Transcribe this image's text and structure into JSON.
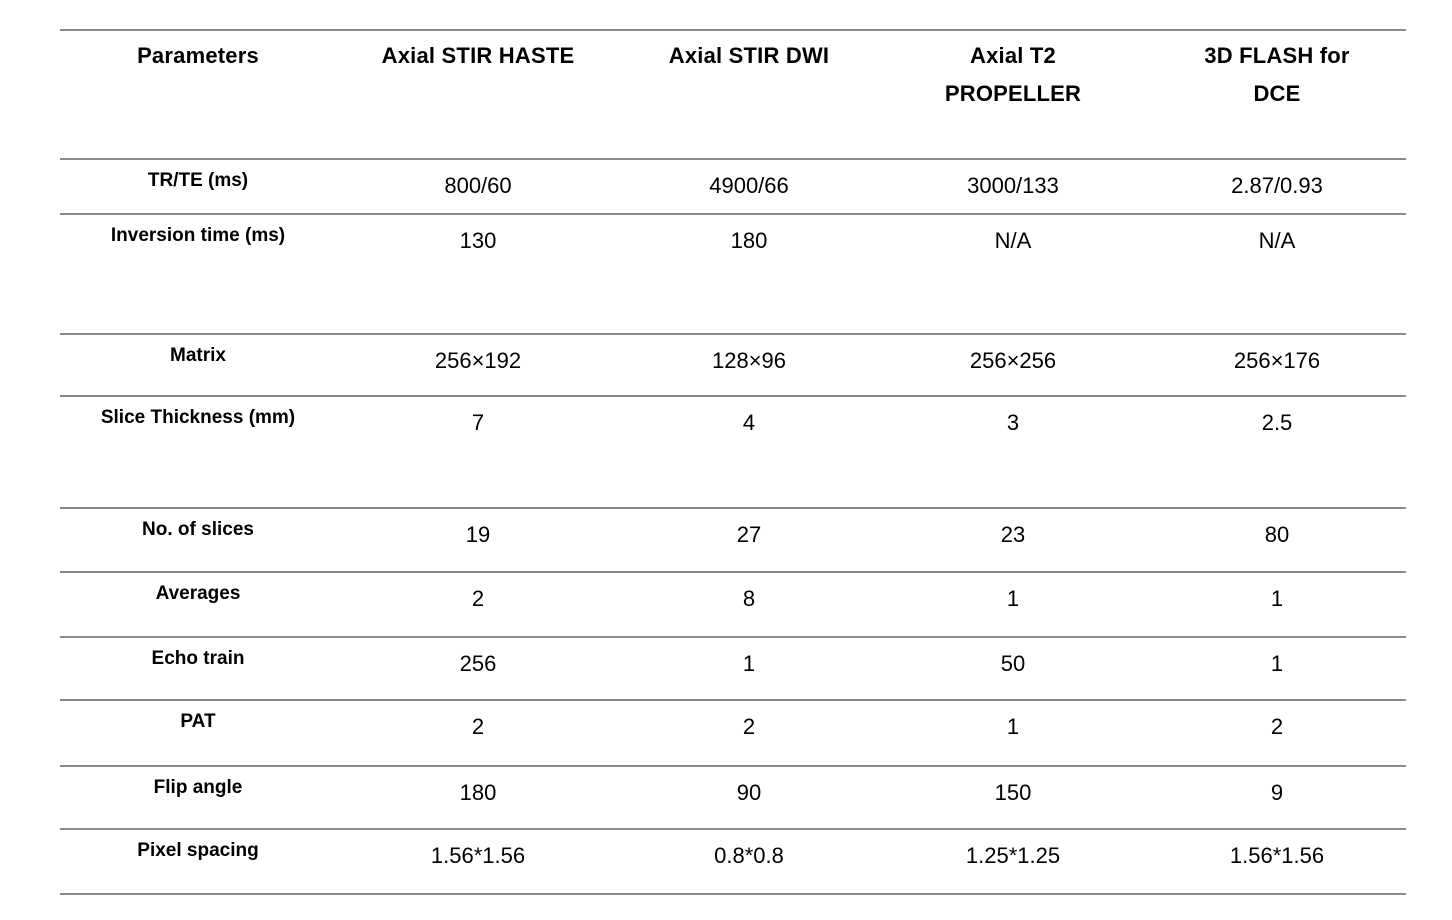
{
  "table": {
    "columns": [
      "Parameters",
      "Axial STIR HASTE",
      "Axial STIR DWI",
      "Axial T2\nPROPELLER",
      "3D FLASH for\nDCE"
    ],
    "rows": [
      {
        "label": "TR/TE (ms)",
        "values": [
          "800/60",
          "4900/66",
          "3000/133",
          "2.87/0.93"
        ]
      },
      {
        "label": "Inversion time (ms)",
        "values": [
          "130",
          "180",
          "N/A",
          "N/A"
        ]
      },
      {
        "label": "Matrix",
        "values": [
          "256×192",
          "128×96",
          "256×256",
          "256×176"
        ]
      },
      {
        "label": "Slice Thickness (mm)",
        "values": [
          "7",
          "4",
          "3",
          "2.5"
        ]
      },
      {
        "label": "No. of slices",
        "values": [
          "19",
          "27",
          "23",
          "80"
        ]
      },
      {
        "label": "Averages",
        "values": [
          "2",
          "8",
          "1",
          "1"
        ]
      },
      {
        "label": "Echo train",
        "values": [
          "256",
          "1",
          "50",
          "1"
        ]
      },
      {
        "label": "PAT",
        "values": [
          "2",
          "2",
          "1",
          "2"
        ]
      },
      {
        "label": "Flip angle",
        "values": [
          "180",
          "90",
          "150",
          "9"
        ]
      },
      {
        "label": "Pixel spacing",
        "values": [
          "1.56*1.56",
          "0.8*0.8",
          "1.25*1.25",
          "1.56*1.56"
        ]
      }
    ]
  },
  "colors": {
    "text": "#000000",
    "rule_line": "#8a8a8a",
    "background": "#ffffff"
  }
}
